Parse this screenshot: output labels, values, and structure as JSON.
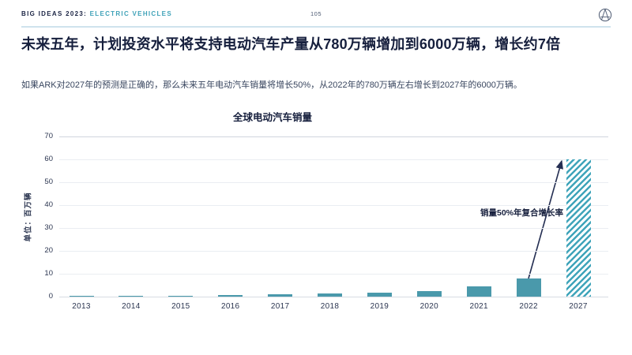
{
  "header": {
    "brand": "BIG IDEAS 2023",
    "separator": ": ",
    "section": "ELECTRIC VEHICLES",
    "page_number": "105",
    "logo_icon": "ark-globe-logo"
  },
  "slide": {
    "title": "未来五年，计划投资水平将支持电动汽车产量从780万辆增加到6000万辆，增长约7倍",
    "subtitle": "如果ARK对2027年的预测是正确的，那么未来五年电动汽车销量将增长50%，从2022年的780万辆左右增长到2027年的6000万辆。"
  },
  "chart_data": {
    "type": "bar",
    "title": "全球电动汽车销量",
    "ylabel": "单位：百万辆",
    "xlabel": "",
    "categories": [
      "2013",
      "2014",
      "2015",
      "2016",
      "2017",
      "2018",
      "2019",
      "2020",
      "2021",
      "2022",
      "2027"
    ],
    "values": [
      0.2,
      0.3,
      0.5,
      0.7,
      1.0,
      1.5,
      1.8,
      2.3,
      4.6,
      7.8,
      60
    ],
    "ylim": [
      0,
      70
    ],
    "yticks": [
      0,
      10,
      20,
      30,
      40,
      50,
      60,
      70
    ],
    "grid": true,
    "legend_position": "none",
    "annotation": "销量50%年复合增长率",
    "highlight_category": "2027",
    "highlight_style": "hatched-projection",
    "bar_color": "#4a99ab",
    "hatch_color": "#3fa4ba"
  },
  "colors": {
    "accent_teal": "#3fa2b8",
    "navy": "#161f3d",
    "divider_blue": "#cfe3ed",
    "arrow": "#242e52"
  }
}
